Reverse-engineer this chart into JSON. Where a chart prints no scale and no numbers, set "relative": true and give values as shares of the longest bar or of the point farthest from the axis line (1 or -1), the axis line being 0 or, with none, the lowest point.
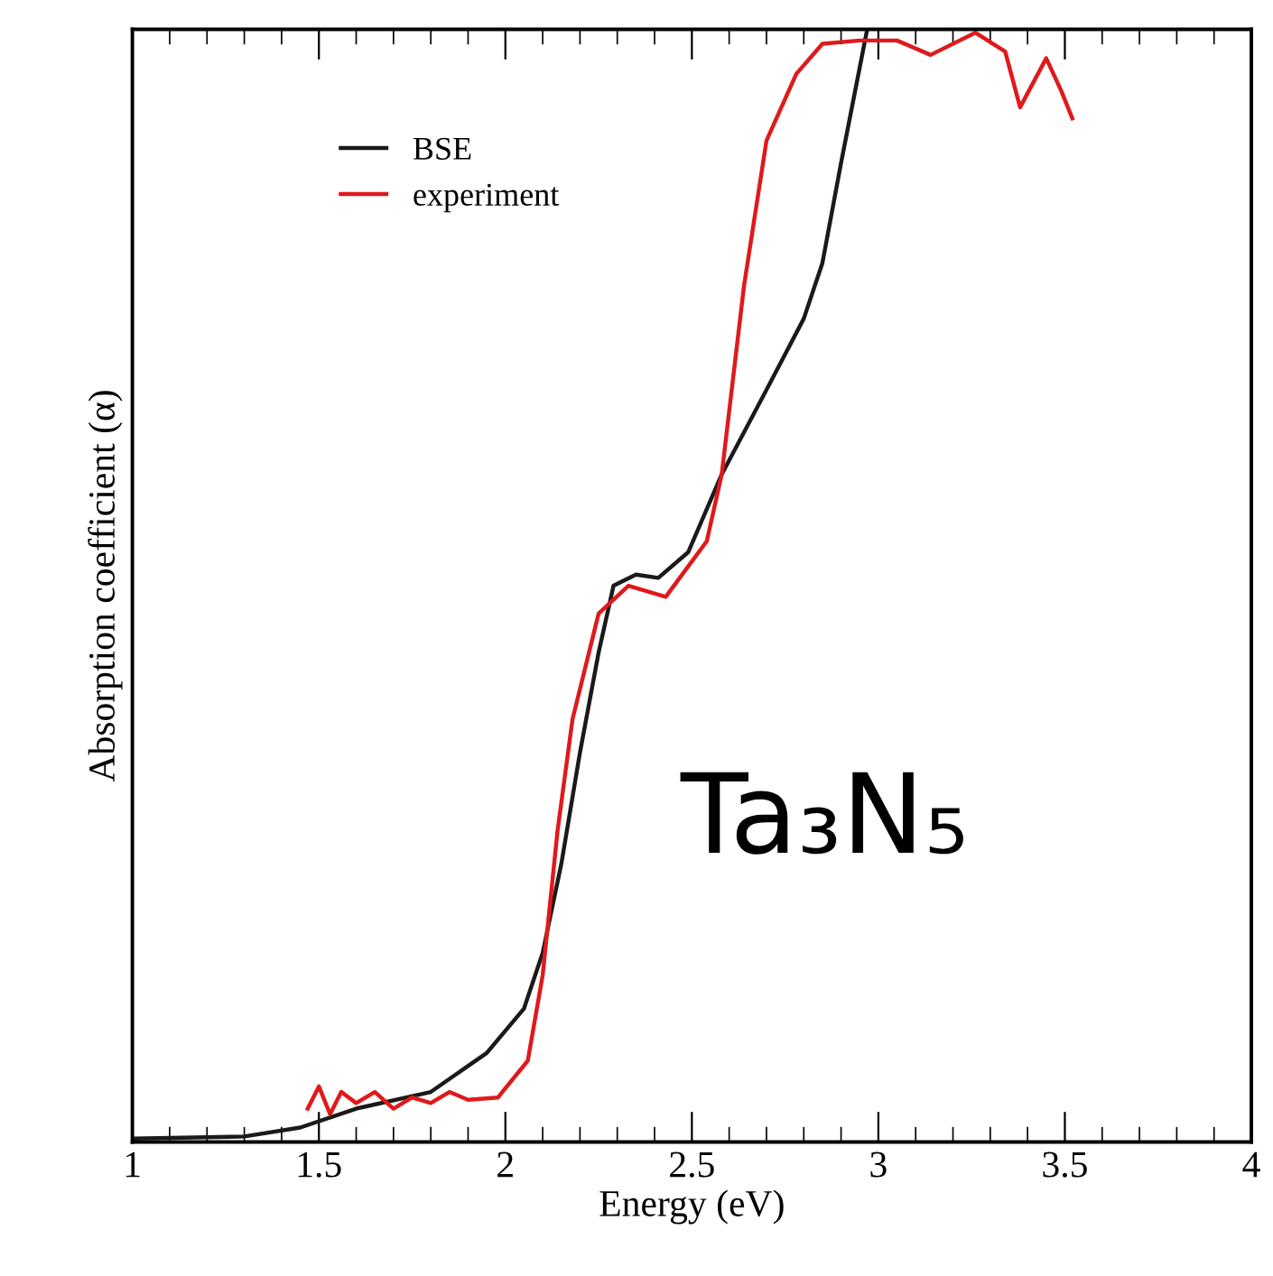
{
  "chart_data": {
    "type": "line",
    "xlabel": "Energy (eV)",
    "ylabel": "Absorption coefficient (α)",
    "relative": true,
    "xlim": [
      1,
      4
    ],
    "xticks": [
      1,
      1.5,
      2,
      2.5,
      3,
      3.5,
      4
    ],
    "tick_labels": "x",
    "legend": "top left",
    "grid": false,
    "annotations": [
      "Ta₃N₅"
    ],
    "series": [
      {
        "name": "BSE",
        "color": "#1a1a1a",
        "x": [
          1.0,
          1.3,
          1.45,
          1.6,
          1.8,
          1.95,
          2.05,
          2.1,
          2.15,
          2.2,
          2.25,
          2.29,
          2.35,
          2.41,
          2.49,
          2.58,
          2.7,
          2.8,
          2.85,
          2.9,
          2.97
        ],
        "values": [
          0.003,
          0.005,
          0.013,
          0.03,
          0.045,
          0.08,
          0.12,
          0.17,
          0.25,
          0.35,
          0.44,
          0.5,
          0.51,
          0.507,
          0.53,
          0.6,
          0.676,
          0.74,
          0.79,
          0.88,
          1.0
        ]
      },
      {
        "name": "experiment",
        "color": "#e0191b",
        "x": [
          1.47,
          1.5,
          1.53,
          1.56,
          1.6,
          1.65,
          1.7,
          1.75,
          1.8,
          1.85,
          1.9,
          1.98,
          2.06,
          2.1,
          2.14,
          2.18,
          2.25,
          2.33,
          2.43,
          2.54,
          2.58,
          2.64,
          2.7,
          2.78,
          2.85,
          2.95,
          3.05,
          3.14,
          3.26,
          3.34,
          3.38,
          3.45,
          3.49,
          3.52
        ],
        "values": [
          0.03,
          0.05,
          0.025,
          0.045,
          0.035,
          0.045,
          0.03,
          0.04,
          0.035,
          0.045,
          0.038,
          0.04,
          0.073,
          0.15,
          0.28,
          0.38,
          0.475,
          0.5,
          0.49,
          0.54,
          0.6,
          0.77,
          0.9,
          0.96,
          0.987,
          0.99,
          0.99,
          0.977,
          0.997,
          0.98,
          0.93,
          0.974,
          0.945,
          0.92
        ]
      }
    ]
  }
}
